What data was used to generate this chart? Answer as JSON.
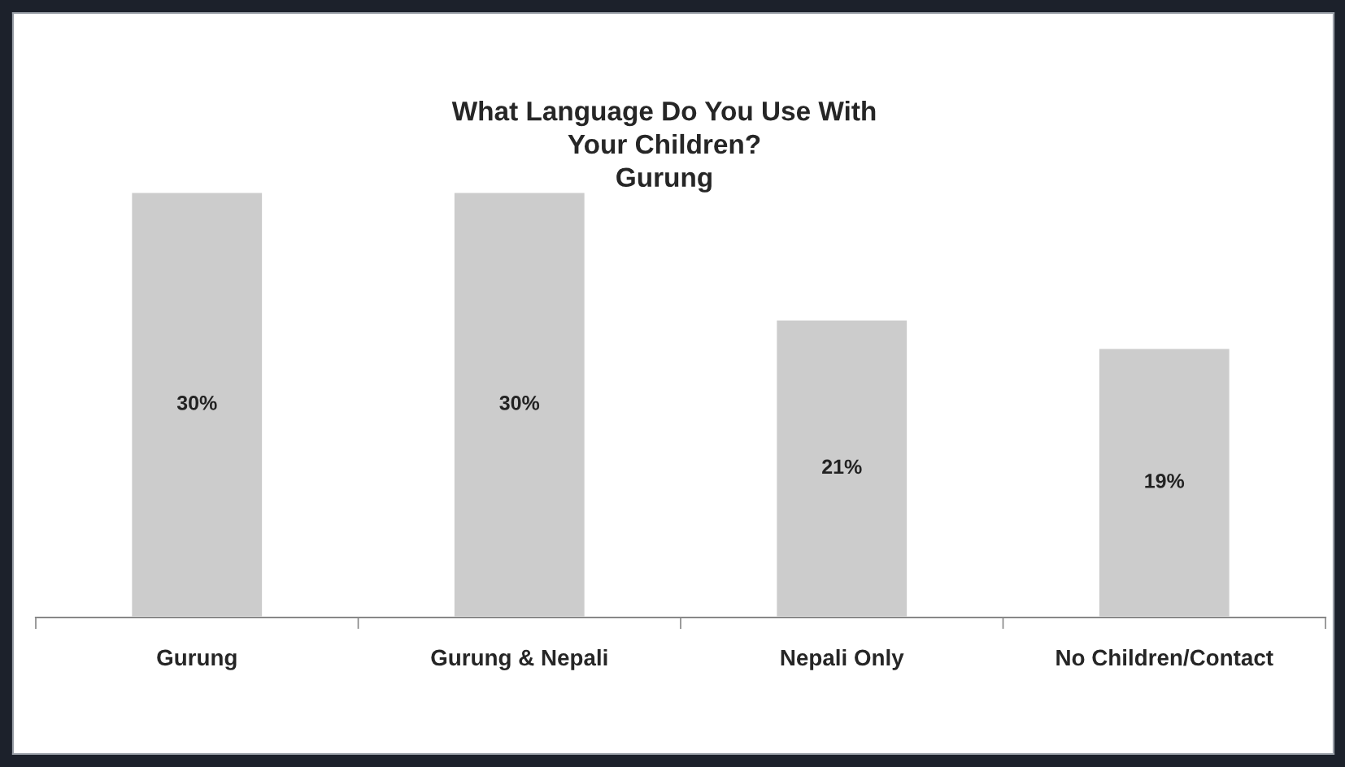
{
  "chart_data": {
    "type": "bar",
    "title": "What Language Do You Use With\nYour Children?\nGurung",
    "categories": [
      "Gurung",
      "Gurung & Nepali",
      "Nepali Only",
      "No Children/Contact"
    ],
    "values": [
      30,
      30,
      21,
      19
    ],
    "value_labels": [
      "30%",
      "30%",
      "21%",
      "19%"
    ],
    "color": "#cccccc"
  }
}
